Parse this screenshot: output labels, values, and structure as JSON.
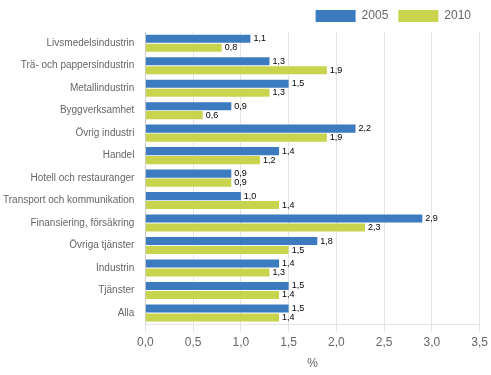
{
  "chart_data": {
    "type": "bar",
    "orientation": "horizontal",
    "xlabel": "%",
    "categories": [
      "Alla",
      "Tjänster",
      "Industrin",
      "Övriga tjänster",
      "Finansiering, försäkring",
      "Transport och kommunikation",
      "Hotell och restauranger",
      "Handel",
      "Övrig industri",
      "Byggverksamhet",
      "Metallindustrin",
      "Trä- och pappersindustrin",
      "Livsmedelsindustrin"
    ],
    "series": [
      {
        "name": "2005",
        "color": "#3c7bbf",
        "values": [
          1.5,
          1.5,
          1.4,
          1.8,
          2.9,
          1.0,
          0.9,
          1.4,
          2.2,
          0.9,
          1.5,
          1.3,
          1.1
        ],
        "value_labels": [
          "1,5",
          "1,5",
          "1,4",
          "1,8",
          "2,9",
          "1,0",
          "0,9",
          "1,4",
          "2,2",
          "0,9",
          "1,5",
          "1,3",
          "1,1"
        ]
      },
      {
        "name": "2010",
        "color": "#c8d44e",
        "values": [
          1.4,
          1.4,
          1.3,
          1.5,
          2.3,
          1.4,
          0.9,
          1.2,
          1.9,
          0.6,
          1.3,
          1.9,
          0.8
        ],
        "value_labels": [
          "1,4",
          "1,4",
          "1,3",
          "1,5",
          "2,3",
          "1,4",
          "0,9",
          "1,2",
          "1,9",
          "0,6",
          "1,3",
          "1,9",
          "0,8"
        ]
      }
    ],
    "xlim": [
      0,
      3.5
    ],
    "xticks": [
      {
        "value": 0.0,
        "label": "0,0"
      },
      {
        "value": 0.5,
        "label": "0,5"
      },
      {
        "value": 1.0,
        "label": "1,0"
      },
      {
        "value": 1.5,
        "label": "1,5"
      },
      {
        "value": 2.0,
        "label": "2,0"
      },
      {
        "value": 2.5,
        "label": "2,5"
      },
      {
        "value": 3.0,
        "label": "3,0"
      },
      {
        "value": 3.5,
        "label": "3,5"
      }
    ],
    "grid": "x",
    "legend": "upper right",
    "data_labels": true
  }
}
